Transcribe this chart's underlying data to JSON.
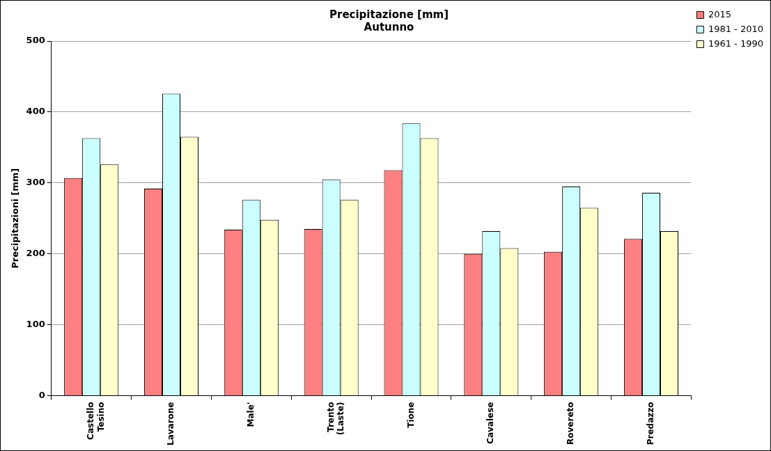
{
  "chart_data": {
    "type": "bar",
    "title": "Precipitazione [mm]",
    "subtitle": "Autunno",
    "ylabel": "Precipitazioni [mm]",
    "categories": [
      "Castello Tesino",
      "Lavarone",
      "Male'",
      "Trento (Laste)",
      "Tione",
      "Cavalese",
      "Rovereto",
      "Predazzo"
    ],
    "series": [
      {
        "name": "2015",
        "color": "#ff8080",
        "values": [
          307,
          292,
          234,
          235,
          318,
          200,
          203,
          221
        ]
      },
      {
        "name": "1981 - 2010",
        "color": "#ccffff",
        "values": [
          363,
          426,
          276,
          305,
          384,
          232,
          295,
          286
        ]
      },
      {
        "name": "1961 - 1990",
        "color": "#ffffcc",
        "values": [
          326,
          365,
          248,
          276,
          363,
          208,
          265,
          232
        ]
      }
    ],
    "ylim": [
      0,
      500
    ],
    "yticks": [
      0,
      100,
      200,
      300,
      400,
      500
    ],
    "grid": "y",
    "legend": "right"
  }
}
